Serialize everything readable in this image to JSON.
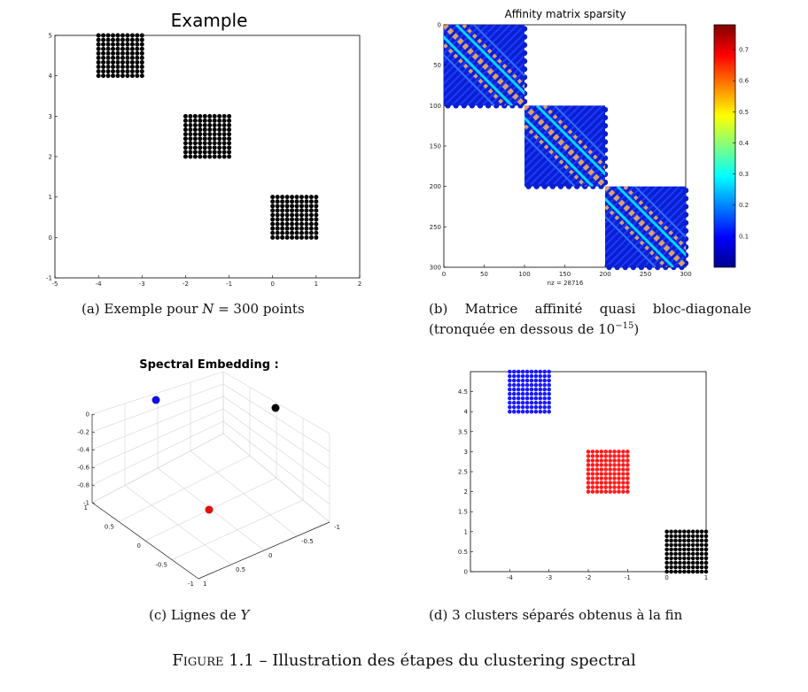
{
  "figure": {
    "label": "Figure 1.1",
    "separator": " – ",
    "text": "Illustration des étapes du clustering spectral"
  },
  "captions": {
    "a": {
      "pre": "(a) Exemple pour ",
      "math": "N",
      "post": " = 300 points"
    },
    "b": {
      "line1": "(b) Matrice affinité quasi bloc-diagonale",
      "line2_pre": "(tronquée en dessous de 10",
      "line2_sup": "−15",
      "line2_post": ")"
    },
    "c": {
      "pre": "(c) Lignes de ",
      "math": "Y"
    },
    "d": {
      "text": "(d) 3 clusters séparés obtenus à la fin"
    }
  },
  "chart_data": [
    {
      "id": "a",
      "type": "scatter",
      "title": "Example",
      "xlim": [
        -5,
        2
      ],
      "ylim": [
        -1,
        5
      ],
      "xticks": [
        "-5",
        "-4",
        "-3",
        "-2",
        "-1",
        "0",
        "1",
        "2"
      ],
      "yticks": [
        "-1",
        "0",
        "1",
        "2",
        "3",
        "4",
        "5"
      ],
      "series": [
        {
          "color": "#000000",
          "x_range": [
            -4,
            -3
          ],
          "y_range": [
            4,
            5
          ],
          "grid": [
            10,
            10
          ]
        },
        {
          "color": "#000000",
          "x_range": [
            -2,
            -1
          ],
          "y_range": [
            2,
            3
          ],
          "grid": [
            10,
            10
          ]
        },
        {
          "color": "#000000",
          "x_range": [
            0,
            1
          ],
          "y_range": [
            0,
            1
          ],
          "grid": [
            10,
            10
          ]
        }
      ]
    },
    {
      "id": "b",
      "type": "heatmap",
      "title": "Affinity matrix sparsity",
      "xlabel": "nz = 28716",
      "xlim": [
        0,
        300
      ],
      "ylim": [
        0,
        300
      ],
      "xticks": [
        "0",
        "50",
        "100",
        "150",
        "200",
        "250",
        "300"
      ],
      "yticks": [
        "0",
        "50",
        "100",
        "150",
        "200",
        "250",
        "300"
      ],
      "blocks": [
        [
          0,
          100
        ],
        [
          100,
          200
        ],
        [
          200,
          300
        ]
      ],
      "colorbar": {
        "min": 0,
        "max": 0.78,
        "ticks": [
          "0.1",
          "0.2",
          "0.3",
          "0.4",
          "0.5",
          "0.6",
          "0.7"
        ]
      }
    },
    {
      "id": "c",
      "type": "scatter",
      "title": "Spectral Embedding :",
      "zticks": [
        "0",
        "-0.2",
        "-0.4",
        "-0.6",
        "-0.8",
        "-1"
      ],
      "yticks_left": [
        "1",
        "0.5",
        "0",
        "-0.5",
        "-1"
      ],
      "xticks_right": [
        "1",
        "0.5",
        "0",
        "-0.5",
        "-1"
      ],
      "points": [
        {
          "color": "#1010e0",
          "label": "blue"
        },
        {
          "color": "#000000",
          "label": "black"
        },
        {
          "color": "#e01010",
          "label": "red"
        }
      ]
    },
    {
      "id": "d",
      "type": "scatter",
      "xlim": [
        -5,
        1
      ],
      "ylim": [
        0,
        5
      ],
      "xticks": [
        "-4",
        "-3",
        "-2",
        "-1",
        "0",
        "1"
      ],
      "yticks": [
        "0",
        "0.5",
        "1",
        "1.5",
        "2",
        "2.5",
        "3",
        "3.5",
        "4",
        "4.5"
      ],
      "series": [
        {
          "color": "#1a1aff",
          "x_range": [
            -4,
            -3
          ],
          "y_range": [
            4,
            5
          ],
          "grid": [
            10,
            10
          ]
        },
        {
          "color": "#ff1a1a",
          "x_range": [
            -2,
            -1
          ],
          "y_range": [
            2,
            3
          ],
          "grid": [
            10,
            10
          ]
        },
        {
          "color": "#000000",
          "x_range": [
            0,
            1
          ],
          "y_range": [
            0,
            1
          ],
          "grid": [
            10,
            10
          ]
        }
      ]
    }
  ]
}
